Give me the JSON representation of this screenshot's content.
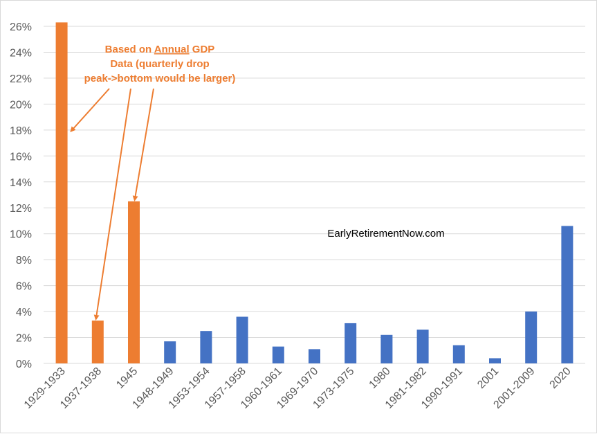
{
  "chart_data": {
    "type": "bar",
    "categories": [
      "1929-1933",
      "1937-1938",
      "1945",
      "1948-1949",
      "1953-1954",
      "1957-1958",
      "1960-1961",
      "1969-1970",
      "1973-1975",
      "1980",
      "1981-1982",
      "1990-1991",
      "2001",
      "2001-2009",
      "2020"
    ],
    "values": [
      26.3,
      3.3,
      12.5,
      1.7,
      2.5,
      3.6,
      1.3,
      1.1,
      3.1,
      2.2,
      2.6,
      1.4,
      0.4,
      4.0,
      10.6
    ],
    "bar_colors": [
      "#ed7d31",
      "#ed7d31",
      "#ed7d31",
      "#4472c4",
      "#4472c4",
      "#4472c4",
      "#4472c4",
      "#4472c4",
      "#4472c4",
      "#4472c4",
      "#4472c4",
      "#4472c4",
      "#4472c4",
      "#4472c4",
      "#4472c4"
    ],
    "title": "",
    "xlabel": "",
    "ylabel": "",
    "ylim": [
      0,
      26
    ],
    "yticks": [
      0,
      2,
      4,
      6,
      8,
      10,
      12,
      14,
      16,
      18,
      20,
      22,
      24,
      26
    ],
    "ytick_labels": [
      "0%",
      "2%",
      "4%",
      "6%",
      "8%",
      "10%",
      "12%",
      "14%",
      "16%",
      "18%",
      "20%",
      "22%",
      "24%",
      "26%"
    ],
    "grid": true,
    "legend": "none",
    "annotation": {
      "line1_pre": "Based on ",
      "line1_underlined": "Annual",
      "line1_post": " GDP",
      "line2": "Data (quarterly drop",
      "line3": "peak->bottom would be larger)",
      "arrow_targets": [
        "1929-1933",
        "1937-1938",
        "1945"
      ]
    },
    "watermark": "EarlyRetirementNow.com"
  }
}
